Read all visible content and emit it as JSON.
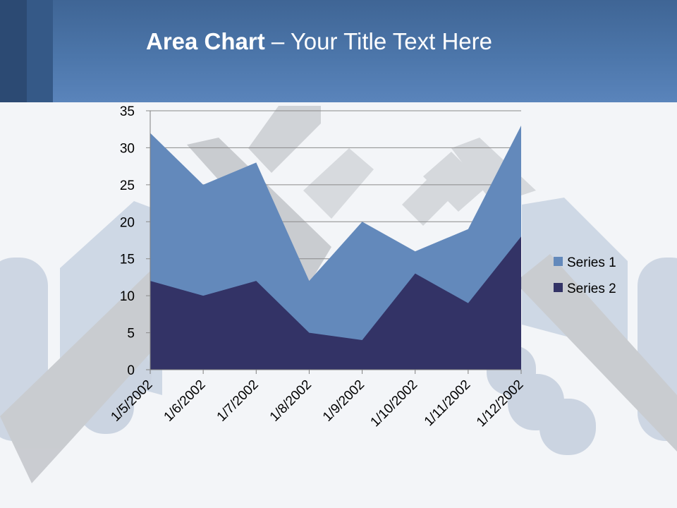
{
  "slide": {
    "title_bold": "Area Chart",
    "title_rest": " – Your Title Text Here"
  },
  "colors": {
    "series1": "#6389bb",
    "series2": "#333366",
    "gridline": "#8a8a8a",
    "header": "#4c76aa"
  },
  "chart_data": {
    "type": "area",
    "title": "",
    "xlabel": "",
    "ylabel": "",
    "categories": [
      "1/5/2002",
      "1/6/2002",
      "1/7/2002",
      "1/8/2002",
      "1/9/2002",
      "1/10/2002",
      "1/11/2002",
      "1/12/2002"
    ],
    "series": [
      {
        "name": "Series 1",
        "values": [
          32,
          25,
          28,
          12,
          20,
          16,
          19,
          33
        ]
      },
      {
        "name": "Series 2",
        "values": [
          12,
          10,
          12,
          5,
          4,
          13,
          9,
          18
        ]
      }
    ],
    "ylim": [
      0,
      35
    ],
    "yticks": [
      0,
      5,
      10,
      15,
      20,
      25,
      30,
      35
    ],
    "grid": true,
    "legend_position": "right",
    "stacked": false
  }
}
